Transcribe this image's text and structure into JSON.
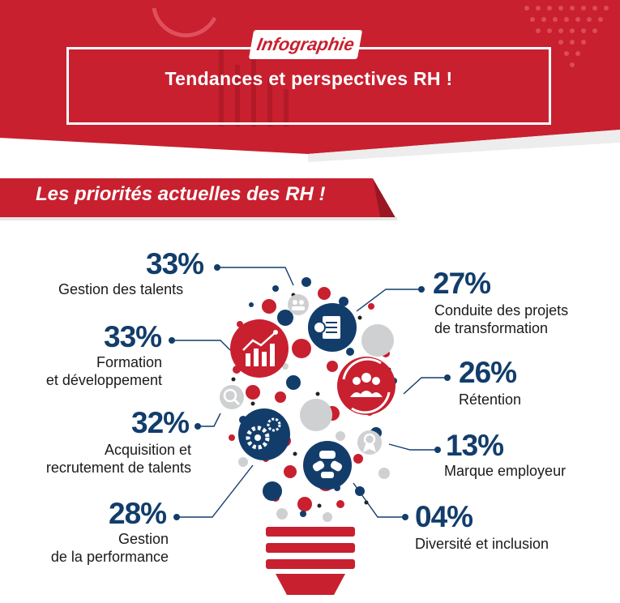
{
  "header": {
    "badge": "Infographie",
    "title": "Tendances et perspectives RH !"
  },
  "section": {
    "title": "Les priorités actuelles des RH !"
  },
  "colors": {
    "red": "#c8202f",
    "navy": "#123d6b",
    "gray": "#cfd0d2"
  },
  "items": [
    {
      "pct": "33%",
      "label": "Gestion des talents",
      "icon": "people-icon"
    },
    {
      "pct": "33%",
      "label_1": "Formation",
      "label_2": "et développement",
      "icon": "growth-chart-icon"
    },
    {
      "pct": "32%",
      "label_1": "Acquisition et",
      "label_2": "recrutement de talents",
      "icon": "gears-icon"
    },
    {
      "pct": "28%",
      "label_1": "Gestion",
      "label_2": "de la performance",
      "icon": "magnifier-person-icon"
    },
    {
      "pct": "27%",
      "label_1": "Conduite des projets",
      "label_2": "de transformation",
      "icon": "documents-icon"
    },
    {
      "pct": "26%",
      "label": "Rétention",
      "icon": "team-cycle-icon"
    },
    {
      "pct": "13%",
      "label": "Marque employeur",
      "icon": "award-icon"
    },
    {
      "pct": "04%",
      "label": "Diversité et inclusion",
      "icon": "hands-icon"
    }
  ]
}
